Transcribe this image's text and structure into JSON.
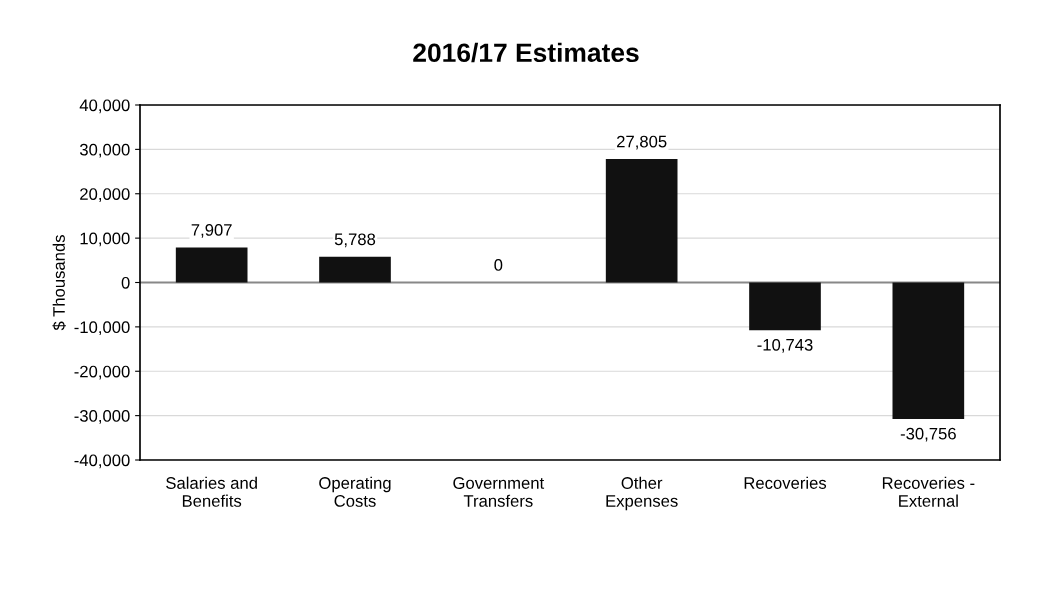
{
  "chart_data": {
    "type": "bar",
    "title": "2016/17 Estimates",
    "ylabel": "$ Thousands",
    "categories": [
      "Salaries and\nBenefits",
      "Operating\nCosts",
      "Government\nTransfers",
      "Other\nExpenses",
      "Recoveries",
      "Recoveries -\nExternal"
    ],
    "values": [
      7907,
      5788,
      0,
      27805,
      -10743,
      -30756
    ],
    "value_labels": [
      "7,907",
      "5,788",
      "0",
      "27,805",
      "-10,743",
      "-30,756"
    ],
    "color": "#111111",
    "ylim": [
      -40000,
      40000
    ],
    "yticks": [
      {
        "value": -40000,
        "label": "-40,000"
      },
      {
        "value": -30000,
        "label": "-30,000"
      },
      {
        "value": -20000,
        "label": "-20,000"
      },
      {
        "value": -10000,
        "label": "-10,000"
      },
      0,
      {
        "value": 10000,
        "label": "10,000"
      },
      {
        "value": 20000,
        "label": "20,000"
      },
      {
        "value": 30000,
        "label": "30,000"
      },
      {
        "value": 40000,
        "label": "40,000"
      }
    ],
    "grid": "y",
    "legend": false
  }
}
